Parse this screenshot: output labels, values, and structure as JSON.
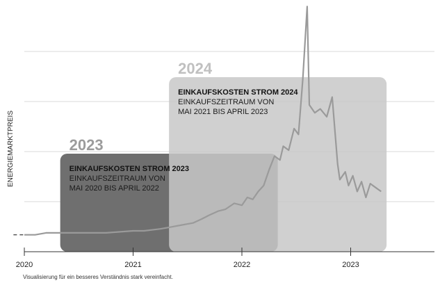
{
  "chart_data": {
    "type": "line",
    "title": "",
    "xlabel": "",
    "ylabel": "ENERGIEMARKTPREIS",
    "x_ticks": [
      "2020",
      "2021",
      "2022",
      "2023"
    ],
    "xlim": [
      2020.0,
      2023.8
    ],
    "grid": true,
    "y_ticks_shown": false,
    "series": [
      {
        "x": [
          2020.0,
          2020.1,
          2020.2,
          2020.3,
          2020.5,
          2020.75,
          2021.0,
          2021.1,
          2021.25,
          2021.35,
          2021.45,
          2021.55,
          2021.63,
          2021.7,
          2021.78,
          2021.85,
          2021.93,
          2022.0,
          2022.05,
          2022.1,
          2022.15,
          2022.2,
          2022.25,
          2022.3,
          2022.35,
          2022.38,
          2022.43,
          2022.48,
          2022.52,
          2022.56,
          2022.6,
          2022.62,
          2022.67,
          2022.72,
          2022.78,
          2022.83,
          2022.88,
          2022.9,
          2022.95,
          2022.98,
          2023.02,
          2023.06,
          2023.1,
          2023.14,
          2023.18,
          2023.23,
          2023.28
        ],
        "y": [
          4,
          4,
          5,
          5,
          5,
          5,
          6,
          6,
          7,
          8,
          9,
          10,
          12,
          14,
          16,
          17,
          20,
          19,
          23,
          22,
          26,
          29,
          37,
          44,
          42,
          49,
          47,
          58,
          55,
          83,
          120,
          70,
          66,
          68,
          64,
          74,
          40,
          32,
          36,
          29,
          34,
          26,
          31,
          23,
          30,
          28,
          26
        ],
        "color": "#bcbcbc"
      }
    ],
    "lead_in_dashed": {
      "x": [
        2019.9,
        2020.0
      ],
      "y": [
        4,
        4
      ]
    },
    "overlay_boxes": [
      {
        "year": "2023",
        "title": "EINKAUFSKOSTEN STROM 2023",
        "line1": "EINKAUFSZEITRAUM VON",
        "line2": "MAI 2020 BIS APRIL 2022",
        "x_range": [
          2020.33,
          2022.33
        ],
        "color": "#6f6f6f"
      },
      {
        "year": "2024",
        "title": "EINKAUFSKOSTEN STROM 2024",
        "line1": "EINKAUFSZEITRAUM VON",
        "line2": "MAI 2021 BIS APRIL 2023",
        "x_range": [
          2021.33,
          2023.33
        ],
        "color": "#c8c8c8"
      }
    ],
    "footnote": "Visualisierung für ein besseres Verständnis stark vereinfacht."
  }
}
